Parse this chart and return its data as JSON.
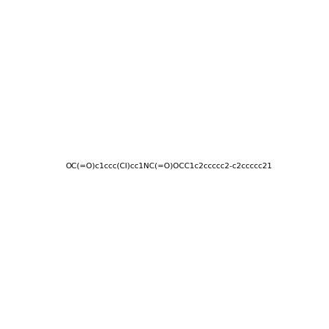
{
  "smiles": "OC(=O)c1ccc(Cl)cc1NC(=O)OCC1c2ccccc2-c2ccccc21",
  "title": "",
  "background_color": "#ffffff",
  "bond_color": "#000000",
  "atom_colors": {
    "O": "#ff0000",
    "N": "#0000ff",
    "Cl": "#00aa00",
    "C": "#000000",
    "H": "#000000"
  },
  "figsize": [
    4.79,
    4.79
  ],
  "dpi": 100
}
